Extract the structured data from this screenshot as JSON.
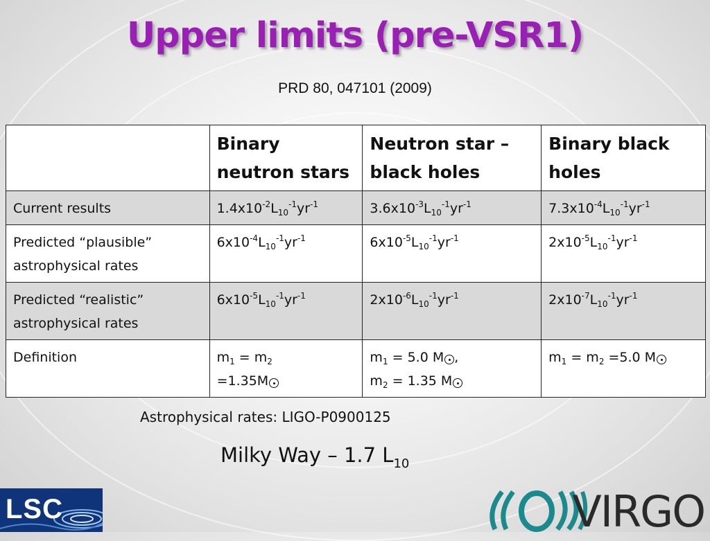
{
  "slide": {
    "title": "Upper limits (pre-VSR1)",
    "reference": "PRD 80, 047101 (2009)"
  },
  "table": {
    "headers": [
      "",
      "Binary neutron stars",
      "Neutron star – black holes",
      "Binary black holes"
    ],
    "rows": [
      {
        "label": "Current results",
        "cells": [
          {
            "mantissa": "1.4x10",
            "exp": "-2"
          },
          {
            "mantissa": "3.6x10",
            "exp": "-3"
          },
          {
            "mantissa": "7.3x10",
            "exp": "-4"
          }
        ]
      },
      {
        "label": "Predicted “plausible” astrophysical rates",
        "cells": [
          {
            "mantissa": "6x10",
            "exp": "-4"
          },
          {
            "mantissa": "6x10",
            "exp": "-5"
          },
          {
            "mantissa": "2x10",
            "exp": "-5"
          }
        ]
      },
      {
        "label": "Predicted “realistic” astrophysical rates",
        "cells": [
          {
            "mantissa": "6x10",
            "exp": "-5"
          },
          {
            "mantissa": "2x10",
            "exp": "-6"
          },
          {
            "mantissa": "2x10",
            "exp": "-7"
          }
        ]
      }
    ],
    "rate_unit": {
      "L": "L",
      "L_sub": "10",
      "L_exp": "-1",
      "yr": "yr",
      "yr_exp": "-1"
    },
    "definition_row": {
      "label": "Definition",
      "bns": {
        "m1": "m",
        "s1": "1",
        "eq": " = m",
        "s2": "2",
        "line2": "=1.35M"
      },
      "nsbh": {
        "m1": "m",
        "s1": "1",
        "val1": " = 5.0 M",
        "comma": ",",
        "m2": "m",
        "s2": "2",
        "val2": " = 1.35 M"
      },
      "bbh": {
        "m1": "m",
        "s1": "1",
        "eq": " = m",
        "s2": "2",
        "val": " =5.0 M"
      }
    }
  },
  "footer": {
    "rates_note": "Astrophysical rates: LIGO-P0900125",
    "milky_way": "Milky Way – 1.7 L",
    "milky_way_sub": "10"
  },
  "logos": {
    "left": "LSC",
    "right": "VIRGO"
  },
  "colors": {
    "title": "#9a1fb4",
    "shaded_row": "#d9d9d9",
    "lsc_background": "#10347a",
    "virgo_mark": "#1b8a8c"
  }
}
